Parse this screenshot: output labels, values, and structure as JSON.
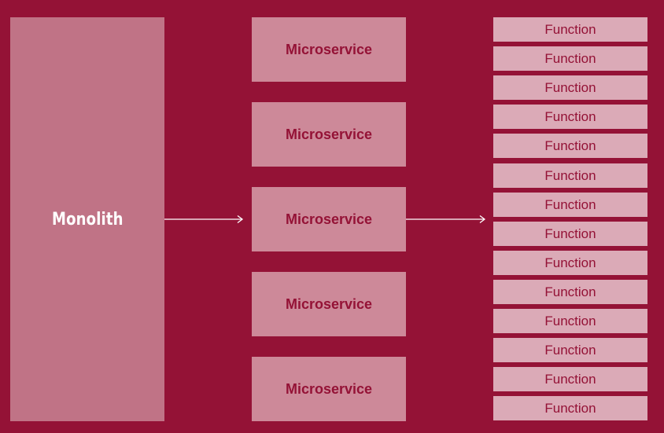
{
  "diagram": {
    "monolith_label": "Monolith",
    "microservices": [
      "Microservice",
      "Microservice",
      "Microservice",
      "Microservice",
      "Microservice"
    ],
    "functions": [
      "Function",
      "Function",
      "Function",
      "Function",
      "Function",
      "Function",
      "Function",
      "Function",
      "Function",
      "Function",
      "Function",
      "Function",
      "Function",
      "Function"
    ]
  },
  "colors": {
    "background": "#941236",
    "monolith": "#c07386",
    "microservice": "#cd8999",
    "function": "#dbaab7",
    "arrow": "#ffffff"
  }
}
